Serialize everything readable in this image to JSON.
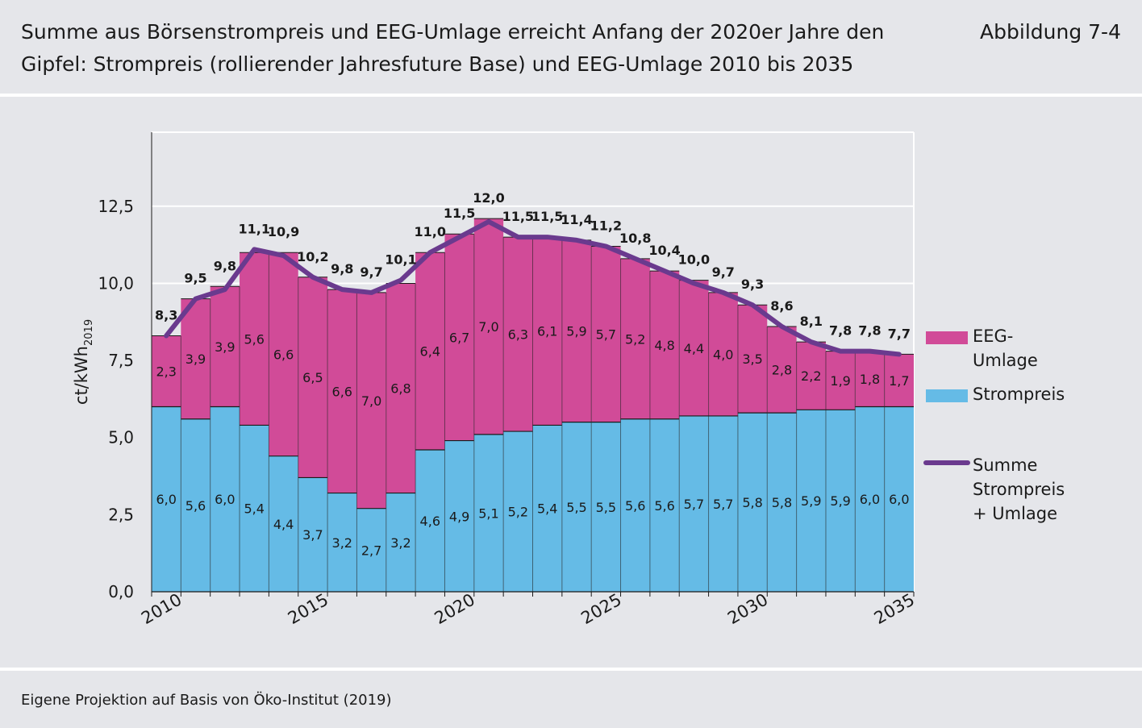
{
  "header": {
    "title": "Summe aus Börsenstrompreis und EEG-Umlage erreicht Anfang der 2020er Jahre den Gipfel: Strompreis (rollierender Jahresfuture Base) und EEG-Umlage 2010 bis 2035",
    "figure_label": "Abbildung 7-4"
  },
  "footer": {
    "source": "Eigene Projektion auf Basis von Öko-Institut (2019)"
  },
  "chart_data": {
    "type": "bar",
    "stacked": true,
    "years": [
      2010,
      2011,
      2012,
      2013,
      2014,
      2015,
      2016,
      2017,
      2018,
      2019,
      2020,
      2021,
      2022,
      2023,
      2024,
      2025,
      2026,
      2027,
      2028,
      2029,
      2030,
      2031,
      2032,
      2033,
      2034,
      2035
    ],
    "ylabel_main": "ct/kWh",
    "ylabel_sub": "2019",
    "ylim": [
      0,
      14.9
    ],
    "yticks": [
      0,
      2.5,
      5.0,
      7.5,
      10.0,
      12.5
    ],
    "ytick_labels": [
      "0,0",
      "2,5",
      "5,0",
      "7,5",
      "10,0",
      "12,5"
    ],
    "xtick_labels": [
      "2010",
      "2015",
      "2020",
      "2025",
      "2030",
      "2035"
    ],
    "grid": true,
    "legend_position": "right",
    "series": [
      {
        "name": "Strompreis",
        "color": "#65bbe6",
        "values": [
          6.0,
          5.6,
          6.0,
          5.4,
          4.4,
          3.7,
          3.2,
          2.7,
          3.2,
          4.6,
          4.9,
          5.1,
          5.2,
          5.4,
          5.5,
          5.5,
          5.6,
          5.6,
          5.7,
          5.7,
          5.8,
          5.8,
          5.9,
          5.9,
          6.0,
          6.0
        ]
      },
      {
        "name": "EEG-Umlage",
        "color": "#d14b98",
        "values": [
          2.3,
          3.9,
          3.9,
          5.6,
          6.6,
          6.5,
          6.6,
          7.0,
          6.8,
          6.4,
          6.7,
          7.0,
          6.3,
          6.1,
          5.9,
          5.7,
          5.2,
          4.8,
          4.4,
          4.0,
          3.5,
          2.8,
          2.2,
          1.9,
          1.8,
          1.7
        ]
      }
    ],
    "line": {
      "name": "Summe Strompreis + Umlage",
      "color": "#6a3a8e",
      "values": [
        8.3,
        9.5,
        9.8,
        11.1,
        10.9,
        10.2,
        9.8,
        9.7,
        10.1,
        11.0,
        11.5,
        12.0,
        11.5,
        11.5,
        11.4,
        11.2,
        10.8,
        10.4,
        10.0,
        9.7,
        9.3,
        8.6,
        8.1,
        7.8,
        7.8,
        7.7
      ]
    },
    "strom_labels": [
      "6,0",
      "5,6",
      "6,0",
      "5,4",
      "4,4",
      "3,7",
      "3,2",
      "2,7",
      "3,2",
      "4,6",
      "4,9",
      "5,1",
      "5,2",
      "5,4",
      "5,5",
      "5,5",
      "5,6",
      "5,6",
      "5,7",
      "5,7",
      "5,8",
      "5,8",
      "5,9",
      "5,9",
      "6,0",
      "6,0"
    ],
    "eeg_labels": [
      "2,3",
      "3,9",
      "3,9",
      "5,6",
      "6,6",
      "6,5",
      "6,6",
      "7,0",
      "6,8",
      "6,4",
      "6,7",
      "7,0",
      "6,3",
      "6,1",
      "5,9",
      "5,7",
      "5,2",
      "4,8",
      "4,4",
      "4,0",
      "3,5",
      "2,8",
      "2,2",
      "1,9",
      "1,8",
      "1,7"
    ],
    "total_labels": [
      "8,3",
      "9,5",
      "9,8",
      "11,1",
      "10,9",
      "10,2",
      "9,8",
      "9,7",
      "10,1",
      "11,0",
      "11,5",
      "12,0",
      "11,5",
      "11,5",
      "11,4",
      "11,2",
      "10,8",
      "10,4",
      "10,0",
      "9,7",
      "9,3",
      "8,6",
      "8,1",
      "7,8",
      "7,8",
      "7,7"
    ],
    "legend": [
      {
        "kind": "bar",
        "color": "#d14b98",
        "lines": [
          "EEG-",
          "Umlage"
        ]
      },
      {
        "kind": "bar",
        "color": "#65bbe6",
        "lines": [
          "Strompreis"
        ]
      },
      {
        "kind": "line",
        "color": "#6a3a8e",
        "lines": [
          "Summe",
          "Strompreis",
          "+ Umlage"
        ]
      }
    ]
  }
}
